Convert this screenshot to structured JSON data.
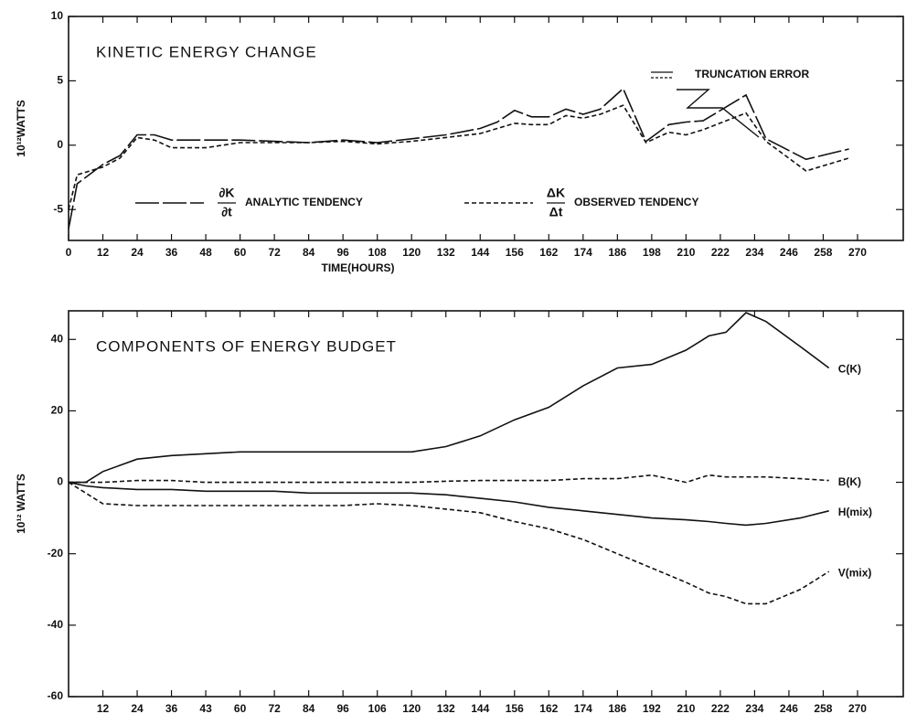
{
  "chart_data": [
    {
      "type": "line",
      "title": "KINETIC ENERGY CHANGE",
      "xlabel": "TIME(HOURS)",
      "ylabel": "10¹²WATTS",
      "xlim": [
        0,
        292
      ],
      "ylim": [
        -7.4,
        10
      ],
      "xticks": [
        0,
        12,
        24,
        36,
        48,
        60,
        72,
        84,
        96,
        108,
        120,
        132,
        144,
        156,
        {
          "value": 168,
          "label": "162"
        },
        {
          "value": 180,
          "label": "174"
        },
        {
          "value": 192,
          "label": "186"
        },
        {
          "value": 204,
          "label": "198"
        },
        {
          "value": 216,
          "label": "210"
        },
        {
          "value": 228,
          "label": "222"
        },
        {
          "value": 240,
          "label": "234"
        },
        {
          "value": 252,
          "label": "246"
        },
        {
          "value": 264,
          "label": "258"
        },
        {
          "value": 276,
          "label": "270"
        }
      ],
      "yticks": [
        10,
        5,
        0,
        -5
      ],
      "x": [
        0,
        3,
        12,
        18,
        24,
        30,
        36,
        48,
        60,
        72,
        84,
        96,
        108,
        120,
        132,
        144,
        150,
        156,
        162,
        168,
        174,
        180,
        186,
        194,
        202,
        210,
        216,
        222,
        237,
        244,
        258,
        273
      ],
      "series": [
        {
          "name": "ANALYTIC TENDENCY",
          "color": "#111111",
          "style": "longdash",
          "values": [
            -6.5,
            -3,
            -1.5,
            -0.8,
            0.8,
            0.8,
            0.4,
            0.4,
            0.4,
            0.3,
            0.2,
            0.4,
            0.2,
            0.5,
            0.8,
            1.3,
            1.8,
            2.7,
            2.2,
            2.2,
            2.8,
            2.4,
            2.8,
            4.4,
            0.3,
            1.6,
            1.8,
            1.9,
            3.9,
            0.5,
            -1.1,
            -0.3
          ]
        },
        {
          "name": "OBSERVED TENDENCY",
          "color": "#111111",
          "style": "dashed",
          "values": [
            -5,
            -2.3,
            -1.7,
            -1,
            0.6,
            0.4,
            -0.2,
            -0.2,
            0.2,
            0.2,
            0.2,
            0.3,
            0.1,
            0.3,
            0.6,
            0.9,
            1.3,
            1.7,
            1.6,
            1.6,
            2.3,
            2.1,
            2.4,
            3.1,
            0.2,
            1.0,
            0.8,
            1.2,
            2.5,
            0.3,
            -2,
            -1
          ]
        }
      ],
      "annotations": [
        "∂K",
        "∂t",
        "ΔK",
        "Δt",
        "TRUNCATION ERROR"
      ]
    },
    {
      "type": "line",
      "title": "COMPONENTS OF ENERGY BUDGET",
      "xlabel": "TIME(HOURS)",
      "ylabel": "10¹² WATTS",
      "xlim": [
        0,
        292
      ],
      "ylim": [
        -60,
        48
      ],
      "xticks": [
        12,
        24,
        36,
        {
          "value": 48,
          "label": "43"
        },
        60,
        72,
        84,
        96,
        {
          "value": 108,
          "label": "106"
        },
        120,
        132,
        144,
        156,
        {
          "value": 168,
          "label": "162"
        },
        {
          "value": 180,
          "label": "174"
        },
        {
          "value": 192,
          "label": "186"
        },
        {
          "value": 204,
          "label": "192"
        },
        {
          "value": 216,
          "label": "210"
        },
        {
          "value": 228,
          "label": "222"
        },
        {
          "value": 240,
          "label": "234"
        },
        {
          "value": 252,
          "label": "246"
        },
        {
          "value": 264,
          "label": "258"
        },
        {
          "value": 276,
          "label": "270"
        }
      ],
      "yticks": [
        40,
        20,
        0,
        -20,
        -40,
        -60
      ],
      "x": [
        0,
        6,
        12,
        24,
        36,
        48,
        60,
        72,
        84,
        96,
        108,
        120,
        132,
        144,
        156,
        168,
        180,
        192,
        204,
        216,
        224,
        230,
        237,
        244,
        256,
        266
      ],
      "series": [
        {
          "name": "C(K)",
          "color": "#111111",
          "style": "solid",
          "values": [
            0,
            0,
            3,
            6.5,
            7.5,
            8,
            8.5,
            8.5,
            8.5,
            8.5,
            8.5,
            8.5,
            10,
            13,
            17.5,
            21,
            27,
            32,
            33,
            37,
            41,
            42,
            47.5,
            45,
            38,
            32
          ]
        },
        {
          "name": "B(K)",
          "color": "#111111",
          "style": "dashed",
          "values": [
            0,
            0,
            0,
            0.5,
            0.5,
            0,
            0,
            0,
            0,
            0,
            0,
            0,
            0.3,
            0.5,
            0.5,
            0.5,
            1,
            1,
            2,
            0,
            2,
            1.5,
            1.5,
            1.5,
            1,
            0.5
          ]
        },
        {
          "name": "H(mix)",
          "color": "#111111",
          "style": "solid",
          "values": [
            0,
            -1,
            -1.5,
            -2,
            -2,
            -2.5,
            -2.5,
            -2.5,
            -3,
            -3,
            -3,
            -3,
            -3.5,
            -4.5,
            -5.5,
            -7,
            -8,
            -9,
            -10,
            -10.5,
            -11,
            -11.5,
            -12,
            -11.5,
            -10,
            -8
          ]
        },
        {
          "name": "V(mix)",
          "color": "#111111",
          "style": "dashed",
          "values": [
            0,
            -3,
            -6,
            -6.5,
            -6.5,
            -6.5,
            -6.5,
            -6.5,
            -6.5,
            -6.5,
            -6,
            -6.5,
            -7.5,
            -8.5,
            -11,
            -13,
            -16,
            -20,
            -24,
            -28,
            -31,
            -32,
            -34,
            -34,
            -30,
            -25
          ]
        }
      ]
    }
  ]
}
